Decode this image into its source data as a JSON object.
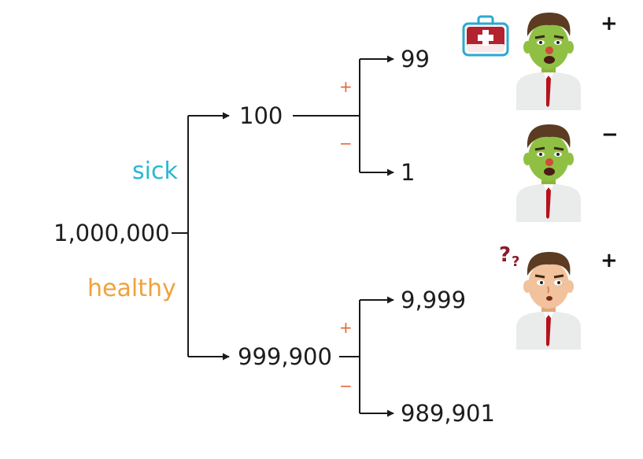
{
  "root": {
    "value": "1,000,000"
  },
  "branches": {
    "sick": {
      "label": "sick",
      "color": "#29b7d3",
      "count": "100"
    },
    "healthy": {
      "label": "healthy",
      "color": "#f0a23c",
      "count": "999,900"
    }
  },
  "test_outcomes": {
    "sick_positive": "99",
    "sick_negative": "1",
    "healthy_positive": "9,999",
    "healthy_negative": "989,901"
  },
  "signs": {
    "plus": "+",
    "minus": "−"
  },
  "sign_color": "#e8673a",
  "figures": [
    {
      "name": "sick-positive-figure",
      "sign": "+",
      "icon": "first-aid-kit-icon"
    },
    {
      "name": "sick-negative-figure",
      "sign": "−"
    },
    {
      "name": "healthy-positive-figure",
      "sign": "+",
      "icon": "question-marks-icon"
    }
  ]
}
